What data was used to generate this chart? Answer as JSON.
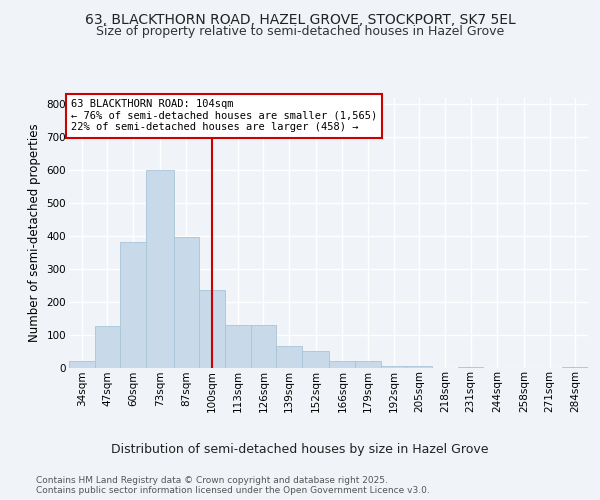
{
  "title_line1": "63, BLACKTHORN ROAD, HAZEL GROVE, STOCKPORT, SK7 5EL",
  "title_line2": "Size of property relative to semi-detached houses in Hazel Grove",
  "xlabel": "Distribution of semi-detached houses by size in Hazel Grove",
  "ylabel": "Number of semi-detached properties",
  "footer_line1": "Contains HM Land Registry data © Crown copyright and database right 2025.",
  "footer_line2": "Contains public sector information licensed under the Open Government Licence v3.0.",
  "annotation_line1": "63 BLACKTHORN ROAD: 104sqm",
  "annotation_line2": "← 76% of semi-detached houses are smaller (1,565)",
  "annotation_line3": "22% of semi-detached houses are larger (458) →",
  "bar_edges": [
    34,
    47,
    60,
    73,
    87,
    100,
    113,
    126,
    139,
    152,
    166,
    179,
    192,
    205,
    218,
    231,
    244,
    258,
    271,
    284,
    297
  ],
  "bar_heights": [
    20,
    125,
    380,
    600,
    395,
    235,
    130,
    130,
    65,
    50,
    20,
    20,
    5,
    5,
    0,
    3,
    0,
    0,
    0,
    2
  ],
  "bar_color": "#c8daea",
  "bar_edge_color": "#a8c4d8",
  "vline_color": "#cc0000",
  "vline_x": 106.5,
  "annotation_box_color": "#cc0000",
  "ylim": [
    0,
    820
  ],
  "yticks": [
    0,
    100,
    200,
    300,
    400,
    500,
    600,
    700,
    800
  ],
  "background_color": "#f0f4f8",
  "grid_color": "#ffffff",
  "title_fontsize": 10,
  "subtitle_fontsize": 9,
  "axis_label_fontsize": 8.5,
  "tick_fontsize": 7.5,
  "annotation_fontsize": 7.5,
  "footer_fontsize": 6.5
}
